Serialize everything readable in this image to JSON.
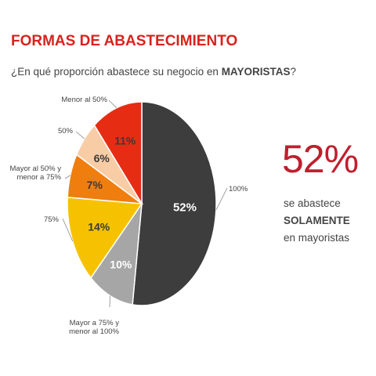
{
  "header": {
    "title": "FORMAS DE ABASTECIMIENTO",
    "question_prefix": "¿En qué proporción abastece su negocio en ",
    "question_bold": "MAYORISTAS",
    "question_suffix": "?"
  },
  "highlight": {
    "value": "52%",
    "line1": "se abastece",
    "line2": "SOLAMENTE",
    "line3": "en mayoristas",
    "color": "#c01f2e"
  },
  "chart_data": {
    "type": "pie",
    "title": "",
    "slices": [
      {
        "label": "100%",
        "value": 52,
        "value_label": "52%",
        "color": "#3d3d3d"
      },
      {
        "label": "Mayor a 75% y menor al 100%",
        "value": 10,
        "value_label": "10%",
        "color": "#a6a6a6"
      },
      {
        "label": "75%",
        "value": 14,
        "value_label": "14%",
        "color": "#f6c200"
      },
      {
        "label": "Mayor al 50% y menor a 75%",
        "value": 7,
        "value_label": "7%",
        "color": "#ef7e0f"
      },
      {
        "label": "50%",
        "value": 6,
        "value_label": "6%",
        "color": "#f8cda6"
      },
      {
        "label": "Menor al 50%",
        "value": 11,
        "value_label": "11%",
        "color": "#e62d14"
      }
    ]
  }
}
